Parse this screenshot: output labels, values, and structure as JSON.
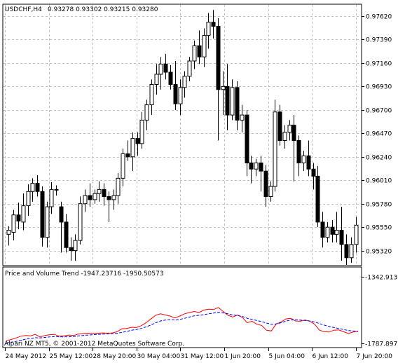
{
  "chart_data": {
    "type": "candlestick",
    "symbol_header": "USDCHF,H4",
    "ohlc_header": "0.93278 0.93302 0.93215 0.93280",
    "ylim": [
      0.9518,
      0.9773
    ],
    "y_ticks": [
      "0.97620",
      "0.97390",
      "0.97160",
      "0.96930",
      "0.96700",
      "0.96470",
      "0.96240",
      "0.96010",
      "0.95780",
      "0.95550",
      "0.95320"
    ],
    "x_ticks": [
      "24 May 2012",
      "25 May 12:00",
      "28 May 20:00",
      "30 May 04:00",
      "31 May 12:00",
      "1 Jun 20:00",
      "5 Jun 04:00",
      "6 Jun 12:00",
      "7 Jun 20:00"
    ],
    "grid": true,
    "candles": [
      {
        "o": 0.9548,
        "h": 0.9556,
        "l": 0.9537,
        "c": 0.9552
      },
      {
        "o": 0.955,
        "h": 0.9572,
        "l": 0.9542,
        "c": 0.9567
      },
      {
        "o": 0.9567,
        "h": 0.9579,
        "l": 0.9553,
        "c": 0.9561
      },
      {
        "o": 0.956,
        "h": 0.9588,
        "l": 0.9552,
        "c": 0.9576
      },
      {
        "o": 0.9576,
        "h": 0.9597,
        "l": 0.9566,
        "c": 0.959
      },
      {
        "o": 0.959,
        "h": 0.9603,
        "l": 0.958,
        "c": 0.9598
      },
      {
        "o": 0.9598,
        "h": 0.9606,
        "l": 0.9585,
        "c": 0.959
      },
      {
        "o": 0.959,
        "h": 0.9595,
        "l": 0.9536,
        "c": 0.9545
      },
      {
        "o": 0.9545,
        "h": 0.958,
        "l": 0.9535,
        "c": 0.9575
      },
      {
        "o": 0.9575,
        "h": 0.9599,
        "l": 0.9568,
        "c": 0.9592
      },
      {
        "o": 0.9592,
        "h": 0.9596,
        "l": 0.9586,
        "c": 0.9592
      },
      {
        "o": 0.9575,
        "h": 0.958,
        "l": 0.953,
        "c": 0.956
      },
      {
        "o": 0.956,
        "h": 0.9568,
        "l": 0.953,
        "c": 0.9535
      },
      {
        "o": 0.9535,
        "h": 0.9545,
        "l": 0.9522,
        "c": 0.9532
      },
      {
        "o": 0.9532,
        "h": 0.9548,
        "l": 0.9522,
        "c": 0.9542
      },
      {
        "o": 0.9542,
        "h": 0.9585,
        "l": 0.9538,
        "c": 0.9578
      },
      {
        "o": 0.9578,
        "h": 0.9592,
        "l": 0.957,
        "c": 0.9586
      },
      {
        "o": 0.9586,
        "h": 0.9598,
        "l": 0.9575,
        "c": 0.9582
      },
      {
        "o": 0.9582,
        "h": 0.9592,
        "l": 0.9578,
        "c": 0.9588
      },
      {
        "o": 0.9588,
        "h": 0.96,
        "l": 0.958,
        "c": 0.9592
      },
      {
        "o": 0.9592,
        "h": 0.9598,
        "l": 0.9576,
        "c": 0.9585
      },
      {
        "o": 0.9585,
        "h": 0.959,
        "l": 0.956,
        "c": 0.9582
      },
      {
        "o": 0.9582,
        "h": 0.9592,
        "l": 0.9572,
        "c": 0.9586
      },
      {
        "o": 0.9586,
        "h": 0.9608,
        "l": 0.9578,
        "c": 0.9603
      },
      {
        "o": 0.9603,
        "h": 0.9632,
        "l": 0.9595,
        "c": 0.9627
      },
      {
        "o": 0.9627,
        "h": 0.964,
        "l": 0.962,
        "c": 0.9624
      },
      {
        "o": 0.9624,
        "h": 0.9648,
        "l": 0.961,
        "c": 0.9642
      },
      {
        "o": 0.9642,
        "h": 0.9648,
        "l": 0.9625,
        "c": 0.9637
      },
      {
        "o": 0.9637,
        "h": 0.9668,
        "l": 0.9632,
        "c": 0.966
      },
      {
        "o": 0.966,
        "h": 0.968,
        "l": 0.965,
        "c": 0.9675
      },
      {
        "o": 0.9675,
        "h": 0.97,
        "l": 0.9665,
        "c": 0.9695
      },
      {
        "o": 0.9695,
        "h": 0.9715,
        "l": 0.9685,
        "c": 0.9705
      },
      {
        "o": 0.9705,
        "h": 0.9722,
        "l": 0.969,
        "c": 0.9715
      },
      {
        "o": 0.9715,
        "h": 0.9725,
        "l": 0.97,
        "c": 0.9707
      },
      {
        "o": 0.9707,
        "h": 0.9714,
        "l": 0.969,
        "c": 0.9695
      },
      {
        "o": 0.9695,
        "h": 0.9718,
        "l": 0.967,
        "c": 0.9676
      },
      {
        "o": 0.9676,
        "h": 0.97,
        "l": 0.9665,
        "c": 0.9692
      },
      {
        "o": 0.9692,
        "h": 0.9708,
        "l": 0.9682,
        "c": 0.9703
      },
      {
        "o": 0.9703,
        "h": 0.9722,
        "l": 0.9698,
        "c": 0.9718
      },
      {
        "o": 0.9718,
        "h": 0.9738,
        "l": 0.971,
        "c": 0.9733
      },
      {
        "o": 0.9733,
        "h": 0.9748,
        "l": 0.9715,
        "c": 0.9722
      },
      {
        "o": 0.9722,
        "h": 0.975,
        "l": 0.9712,
        "c": 0.9743
      },
      {
        "o": 0.9743,
        "h": 0.9765,
        "l": 0.973,
        "c": 0.9756
      },
      {
        "o": 0.9756,
        "h": 0.9768,
        "l": 0.974,
        "c": 0.9752
      },
      {
        "o": 0.9752,
        "h": 0.976,
        "l": 0.964,
        "c": 0.969
      },
      {
        "o": 0.969,
        "h": 0.9708,
        "l": 0.9665,
        "c": 0.9693
      },
      {
        "o": 0.9693,
        "h": 0.9715,
        "l": 0.965,
        "c": 0.9665
      },
      {
        "o": 0.9665,
        "h": 0.97,
        "l": 0.966,
        "c": 0.9692
      },
      {
        "o": 0.9692,
        "h": 0.9698,
        "l": 0.965,
        "c": 0.966
      },
      {
        "o": 0.966,
        "h": 0.9675,
        "l": 0.9648,
        "c": 0.9665
      },
      {
        "o": 0.9665,
        "h": 0.967,
        "l": 0.9605,
        "c": 0.9618
      },
      {
        "o": 0.9618,
        "h": 0.9625,
        "l": 0.9598,
        "c": 0.9612
      },
      {
        "o": 0.9612,
        "h": 0.9622,
        "l": 0.9605,
        "c": 0.9618
      },
      {
        "o": 0.9618,
        "h": 0.9625,
        "l": 0.959,
        "c": 0.961
      },
      {
        "o": 0.961,
        "h": 0.9616,
        "l": 0.9575,
        "c": 0.9585
      },
      {
        "o": 0.9585,
        "h": 0.96,
        "l": 0.958,
        "c": 0.9595
      },
      {
        "o": 0.9595,
        "h": 0.968,
        "l": 0.959,
        "c": 0.9668
      },
      {
        "o": 0.9668,
        "h": 0.9675,
        "l": 0.9635,
        "c": 0.964
      },
      {
        "o": 0.964,
        "h": 0.9655,
        "l": 0.9632,
        "c": 0.9648
      },
      {
        "o": 0.9648,
        "h": 0.966,
        "l": 0.964,
        "c": 0.9655
      },
      {
        "o": 0.9655,
        "h": 0.9665,
        "l": 0.96,
        "c": 0.964
      },
      {
        "o": 0.964,
        "h": 0.9645,
        "l": 0.9605,
        "c": 0.9618
      },
      {
        "o": 0.9618,
        "h": 0.963,
        "l": 0.961,
        "c": 0.9625
      },
      {
        "o": 0.9625,
        "h": 0.964,
        "l": 0.9605,
        "c": 0.9612
      },
      {
        "o": 0.9612,
        "h": 0.9618,
        "l": 0.9592,
        "c": 0.9605
      },
      {
        "o": 0.9605,
        "h": 0.9615,
        "l": 0.9555,
        "c": 0.956
      },
      {
        "o": 0.956,
        "h": 0.957,
        "l": 0.9535,
        "c": 0.9545
      },
      {
        "o": 0.9545,
        "h": 0.956,
        "l": 0.954,
        "c": 0.9555
      },
      {
        "o": 0.9555,
        "h": 0.9562,
        "l": 0.954,
        "c": 0.9548
      },
      {
        "o": 0.9548,
        "h": 0.957,
        "l": 0.954,
        "c": 0.9552
      },
      {
        "o": 0.9552,
        "h": 0.9575,
        "l": 0.9522,
        "c": 0.9538
      },
      {
        "o": 0.9538,
        "h": 0.9548,
        "l": 0.9518,
        "c": 0.9525
      },
      {
        "o": 0.9525,
        "h": 0.9545,
        "l": 0.952,
        "c": 0.9538
      },
      {
        "o": 0.9538,
        "h": 0.9565,
        "l": 0.953,
        "c": 0.9557
      }
    ]
  },
  "indicator": {
    "label": "Price and Volume Trend -1947.23716 -1950.50573",
    "ylim": [
      -1787.8973,
      -1342.9131
    ],
    "y_ticks": [
      "-1342.9131",
      "-1787.8973"
    ],
    "series": [
      {
        "color": "#ff0000",
        "values": [
          -1770,
          -1762,
          -1752,
          -1740,
          -1735,
          -1738,
          -1728,
          -1745,
          -1735,
          -1730,
          -1728,
          -1740,
          -1738,
          -1732,
          -1735,
          -1725,
          -1722,
          -1720,
          -1722,
          -1720,
          -1718,
          -1720,
          -1718,
          -1710,
          -1690,
          -1688,
          -1680,
          -1682,
          -1670,
          -1650,
          -1625,
          -1600,
          -1590,
          -1598,
          -1605,
          -1618,
          -1605,
          -1590,
          -1582,
          -1575,
          -1582,
          -1565,
          -1560,
          -1562,
          -1548,
          -1575,
          -1600,
          -1612,
          -1598,
          -1615,
          -1650,
          -1640,
          -1660,
          -1668,
          -1700,
          -1705,
          -1658,
          -1645,
          -1625,
          -1620,
          -1638,
          -1640,
          -1632,
          -1640,
          -1660,
          -1700,
          -1710,
          -1712,
          -1700,
          -1698,
          -1710,
          -1722,
          -1712,
          -1708
        ]
      },
      {
        "color": "#0000ff",
        "values": [
          -1785,
          -1780,
          -1775,
          -1768,
          -1760,
          -1755,
          -1750,
          -1752,
          -1748,
          -1745,
          -1742,
          -1744,
          -1745,
          -1744,
          -1742,
          -1738,
          -1735,
          -1732,
          -1730,
          -1728,
          -1726,
          -1724,
          -1722,
          -1720,
          -1715,
          -1708,
          -1700,
          -1695,
          -1688,
          -1678,
          -1665,
          -1650,
          -1638,
          -1632,
          -1630,
          -1632,
          -1628,
          -1620,
          -1612,
          -1604,
          -1600,
          -1596,
          -1590,
          -1585,
          -1580,
          -1584,
          -1590,
          -1598,
          -1602,
          -1608,
          -1620,
          -1628,
          -1635,
          -1642,
          -1652,
          -1660,
          -1658,
          -1650,
          -1640,
          -1632,
          -1630,
          -1632,
          -1635,
          -1638,
          -1645,
          -1656,
          -1666,
          -1675,
          -1682,
          -1688,
          -1695,
          -1702,
          -1705,
          -1706
        ]
      }
    ]
  },
  "copyright": "Alpari NZ MT5, © 2001-2012 MetaQuotes Software Corp."
}
